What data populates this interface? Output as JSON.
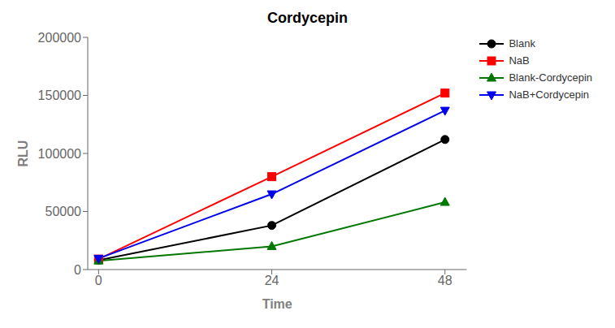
{
  "chart_data": {
    "type": "line",
    "title": "Cordycepin",
    "x_label": "Time",
    "y_label": "RLU",
    "x": [
      0,
      24,
      48
    ],
    "series": [
      {
        "name": "Blank",
        "color": "#000000",
        "marker": "circle",
        "values": [
          8000,
          38000,
          112000
        ]
      },
      {
        "name": "NaB",
        "color": "#ff0000",
        "marker": "square",
        "values": [
          9000,
          80000,
          152000
        ]
      },
      {
        "name": "Blank-Cordycepin",
        "color": "#007700",
        "marker": "triangle-up",
        "values": [
          7500,
          20000,
          58000
        ]
      },
      {
        "name": "NaB+Cordycepin",
        "color": "#0000ee",
        "marker": "triangle-down",
        "values": [
          9500,
          65000,
          137000
        ]
      }
    ],
    "xlim": [
      -1.5,
      51
    ],
    "xticks": [
      0,
      24,
      48
    ],
    "ylim": [
      0,
      200000
    ],
    "yticks": [
      0,
      50000,
      100000,
      150000,
      200000
    ],
    "grid": false,
    "legend": "upper right"
  }
}
